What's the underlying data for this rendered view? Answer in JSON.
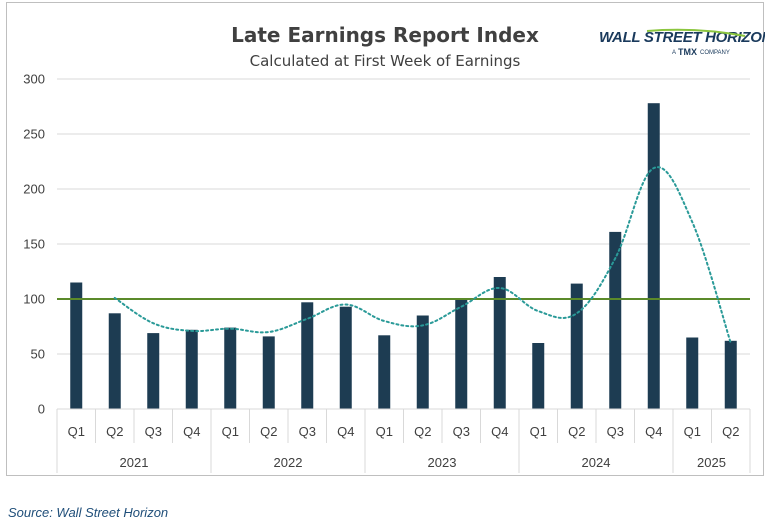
{
  "chart_data": {
    "type": "bar",
    "title": "Late Earnings Report Index",
    "subtitle": "Calculated at First Week of Earnings",
    "categories": [
      "Q1",
      "Q2",
      "Q3",
      "Q4",
      "Q1",
      "Q2",
      "Q3",
      "Q4",
      "Q1",
      "Q2",
      "Q3",
      "Q4",
      "Q1",
      "Q2",
      "Q3",
      "Q4",
      "Q1",
      "Q2"
    ],
    "groups": [
      {
        "label": "2021",
        "count": 4
      },
      {
        "label": "2022",
        "count": 4
      },
      {
        "label": "2023",
        "count": 4
      },
      {
        "label": "2024",
        "count": 4
      },
      {
        "label": "2025",
        "count": 2
      }
    ],
    "series": [
      {
        "type": "bar",
        "values": [
          115,
          87,
          69,
          72,
          74,
          66,
          97,
          93,
          67,
          85,
          100,
          120,
          60,
          114,
          161,
          278,
          65,
          62
        ]
      },
      {
        "type": "line",
        "style": "dotted",
        "values": [
          null,
          101,
          78,
          71,
          73,
          70,
          82,
          95,
          80,
          76,
          93,
          110,
          89,
          87,
          137,
          219,
          170,
          60
        ]
      }
    ],
    "reference_line": 100,
    "ylim": [
      0,
      300
    ],
    "yticks": [
      0,
      50,
      100,
      150,
      200,
      250,
      300
    ],
    "grid": true,
    "colors": {
      "bar": "#1d3c52",
      "trend": "#2a9a98",
      "reference": "#5b8a2a",
      "grid": "#d9d9d9",
      "text": "#404040"
    }
  },
  "logo": {
    "name": "WALL STREET HORIZON",
    "tag_prefix": "A",
    "tag_brand": "TMX",
    "tag_suffix": "COMPANY"
  },
  "source": "Source: Wall Street Horizon"
}
